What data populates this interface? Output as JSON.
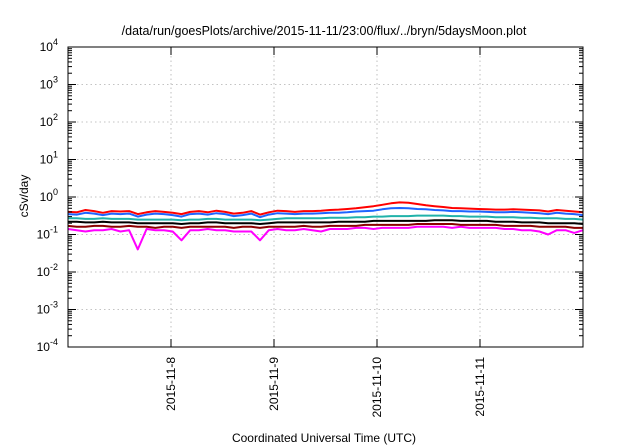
{
  "chart_data": {
    "type": "line",
    "title": "/data/run/goesPlots/archive/2015-11-11/23:00/flux/../bryn/5daysMoon.plot",
    "xlabel": "Coordinated Universal Time (UTC)",
    "ylabel": "cSv/day",
    "y_scale": "log",
    "ylim_exponents": [
      -4,
      4
    ],
    "y_base": "10",
    "y_tick_exponents": [
      "-4",
      "-3",
      "-2",
      "-1",
      "0",
      "1",
      "2",
      "3",
      "4"
    ],
    "x_start": "2015-11-07",
    "xlim_days": [
      0.0,
      5.0
    ],
    "x_ticks": [
      {
        "day": 1,
        "label": "2015-11-8"
      },
      {
        "day": 2,
        "label": "2015-11-9"
      },
      {
        "day": 3,
        "label": "2015-11-10"
      },
      {
        "day": 4,
        "label": "2015-11-11"
      }
    ],
    "grid": true,
    "legend": "none",
    "series": [
      {
        "color": "#ff00ff",
        "values": [
          0.14,
          0.13,
          0.12,
          0.13,
          0.13,
          0.14,
          0.12,
          0.13,
          0.04,
          0.14,
          0.13,
          0.13,
          0.12,
          0.07,
          0.13,
          0.13,
          0.14,
          0.13,
          0.13,
          0.12,
          0.12,
          0.12,
          0.07,
          0.13,
          0.14,
          0.13,
          0.13,
          0.14,
          0.13,
          0.12,
          0.14,
          0.14,
          0.14,
          0.15,
          0.15,
          0.14,
          0.15,
          0.15,
          0.15,
          0.15,
          0.16,
          0.16,
          0.16,
          0.16,
          0.15,
          0.16,
          0.15,
          0.15,
          0.15,
          0.15,
          0.14,
          0.14,
          0.13,
          0.13,
          0.12,
          0.1,
          0.13,
          0.13,
          0.11,
          0.13
        ]
      },
      {
        "color": "#8b0000",
        "values": [
          0.17,
          0.16,
          0.16,
          0.17,
          0.17,
          0.16,
          0.16,
          0.17,
          0.16,
          0.16,
          0.15,
          0.16,
          0.16,
          0.15,
          0.16,
          0.16,
          0.16,
          0.16,
          0.16,
          0.15,
          0.16,
          0.16,
          0.15,
          0.16,
          0.16,
          0.16,
          0.16,
          0.17,
          0.16,
          0.16,
          0.17,
          0.17,
          0.17,
          0.17,
          0.18,
          0.18,
          0.18,
          0.18,
          0.18,
          0.18,
          0.19,
          0.19,
          0.19,
          0.19,
          0.19,
          0.18,
          0.18,
          0.18,
          0.18,
          0.18,
          0.17,
          0.17,
          0.17,
          0.17,
          0.16,
          0.16,
          0.16,
          0.16,
          0.15,
          0.15
        ]
      },
      {
        "color": "#000000",
        "values": [
          0.22,
          0.22,
          0.21,
          0.21,
          0.22,
          0.21,
          0.21,
          0.21,
          0.2,
          0.2,
          0.2,
          0.2,
          0.2,
          0.19,
          0.2,
          0.2,
          0.21,
          0.21,
          0.2,
          0.2,
          0.2,
          0.2,
          0.19,
          0.2,
          0.21,
          0.21,
          0.21,
          0.21,
          0.21,
          0.21,
          0.21,
          0.22,
          0.22,
          0.22,
          0.22,
          0.23,
          0.23,
          0.23,
          0.23,
          0.23,
          0.23,
          0.23,
          0.24,
          0.24,
          0.24,
          0.23,
          0.23,
          0.23,
          0.23,
          0.22,
          0.22,
          0.22,
          0.21,
          0.21,
          0.21,
          0.2,
          0.2,
          0.2,
          0.2,
          0.19
        ]
      },
      {
        "color": "#20b2aa",
        "values": [
          0.27,
          0.27,
          0.26,
          0.26,
          0.27,
          0.26,
          0.26,
          0.26,
          0.25,
          0.25,
          0.25,
          0.25,
          0.25,
          0.24,
          0.25,
          0.25,
          0.26,
          0.26,
          0.25,
          0.25,
          0.25,
          0.25,
          0.24,
          0.25,
          0.26,
          0.27,
          0.27,
          0.27,
          0.27,
          0.27,
          0.28,
          0.28,
          0.28,
          0.29,
          0.29,
          0.3,
          0.3,
          0.31,
          0.31,
          0.31,
          0.32,
          0.32,
          0.32,
          0.32,
          0.31,
          0.31,
          0.3,
          0.3,
          0.3,
          0.29,
          0.29,
          0.29,
          0.28,
          0.28,
          0.27,
          0.27,
          0.27,
          0.26,
          0.26,
          0.25
        ]
      },
      {
        "color": "#1e64ff",
        "values": [
          0.35,
          0.34,
          0.38,
          0.36,
          0.33,
          0.36,
          0.35,
          0.36,
          0.3,
          0.34,
          0.36,
          0.35,
          0.33,
          0.3,
          0.35,
          0.36,
          0.34,
          0.37,
          0.35,
          0.31,
          0.33,
          0.36,
          0.29,
          0.34,
          0.37,
          0.36,
          0.35,
          0.36,
          0.36,
          0.37,
          0.38,
          0.38,
          0.39,
          0.41,
          0.42,
          0.43,
          0.47,
          0.5,
          0.51,
          0.5,
          0.48,
          0.47,
          0.45,
          0.44,
          0.42,
          0.42,
          0.41,
          0.41,
          0.4,
          0.39,
          0.39,
          0.4,
          0.39,
          0.38,
          0.37,
          0.35,
          0.38,
          0.36,
          0.35,
          0.33
        ]
      },
      {
        "color": "#ff0000",
        "values": [
          0.4,
          0.39,
          0.45,
          0.42,
          0.38,
          0.42,
          0.41,
          0.42,
          0.35,
          0.39,
          0.42,
          0.4,
          0.38,
          0.35,
          0.4,
          0.42,
          0.39,
          0.43,
          0.4,
          0.36,
          0.38,
          0.42,
          0.34,
          0.39,
          0.43,
          0.42,
          0.4,
          0.42,
          0.42,
          0.43,
          0.45,
          0.46,
          0.48,
          0.5,
          0.53,
          0.57,
          0.62,
          0.68,
          0.72,
          0.7,
          0.65,
          0.6,
          0.57,
          0.54,
          0.51,
          0.5,
          0.49,
          0.48,
          0.47,
          0.46,
          0.46,
          0.47,
          0.46,
          0.45,
          0.44,
          0.41,
          0.45,
          0.43,
          0.41,
          0.39
        ]
      }
    ]
  }
}
